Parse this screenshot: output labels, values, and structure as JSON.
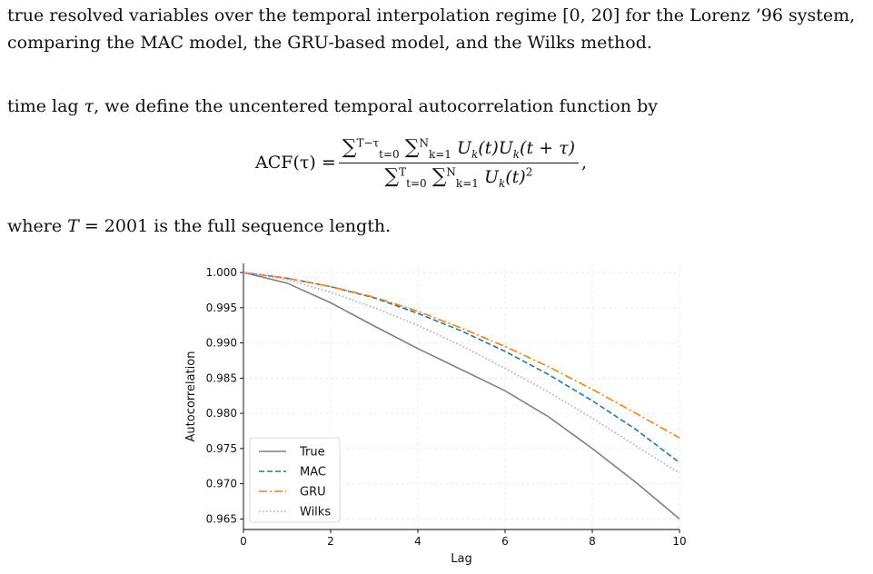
{
  "text": {
    "line1": "true resolved variables over the temporal interpolation regime [0, 20] for the Lorenz ’96 system,",
    "line2": "comparing the MAC model, the GRU-based model, and the Wilks method.",
    "line3_a": "time lag ",
    "line3_tau": "τ",
    "line3_b": ", we define the uncentered temporal autocorrelation function by",
    "eq_lhs": "ACF(τ) =",
    "eq_num_sub1": "t=0",
    "eq_num_sup1": "T−τ",
    "eq_num_sub2": "k=1",
    "eq_num_sup2": "N",
    "eq_num_body": "U",
    "eq_num_k": "k",
    "eq_num_t1": "(t)",
    "eq_num_t2": "(t + τ)",
    "eq_den_sub1": "t=0",
    "eq_den_sup1": "T",
    "eq_den_sub2": "k=1",
    "eq_den_sup2": "N",
    "eq_den_t": "(t)",
    "eq_den_sq": "2",
    "eq_trail": ",",
    "line4_a": "where ",
    "line4_T": "T",
    "line4_b": " = 2001 is the full sequence length."
  },
  "chart_data": {
    "type": "line",
    "xlabel": "Lag",
    "ylabel": "Autocorrelation",
    "xlim": [
      0,
      10
    ],
    "ylim": [
      0.9635,
      1.0013
    ],
    "xticks": [
      0,
      2,
      4,
      6,
      8,
      10
    ],
    "yticks": [
      0.965,
      0.97,
      0.975,
      0.98,
      0.985,
      0.99,
      0.995,
      1.0
    ],
    "grid": true,
    "legend": "lower-left",
    "x": [
      0,
      1,
      2,
      3,
      4,
      5,
      6,
      7,
      8,
      9,
      10
    ],
    "series": [
      {
        "name": "True",
        "color": "#808080",
        "dash": "solid",
        "values": [
          1.0,
          0.9985,
          0.9957,
          0.9924,
          0.9892,
          0.9862,
          0.9832,
          0.9795,
          0.975,
          0.9702,
          0.965
        ]
      },
      {
        "name": "MAC",
        "color": "#1f77b4",
        "dash": "dashed",
        "values": [
          1.0,
          0.9992,
          0.998,
          0.9964,
          0.9942,
          0.9917,
          0.9888,
          0.9855,
          0.9818,
          0.9777,
          0.973
        ]
      },
      {
        "name": "GRU",
        "color": "#ff7f0e",
        "dash": "dashdot",
        "values": [
          1.0,
          0.9992,
          0.998,
          0.9965,
          0.9945,
          0.9921,
          0.9895,
          0.9866,
          0.9834,
          0.98,
          0.9765
        ]
      },
      {
        "name": "Wilks",
        "color": "#b39ddb",
        "dash": "dotted",
        "values": [
          1.0,
          0.999,
          0.9972,
          0.995,
          0.9925,
          0.9896,
          0.9864,
          0.983,
          0.9793,
          0.9754,
          0.9715
        ]
      }
    ]
  }
}
